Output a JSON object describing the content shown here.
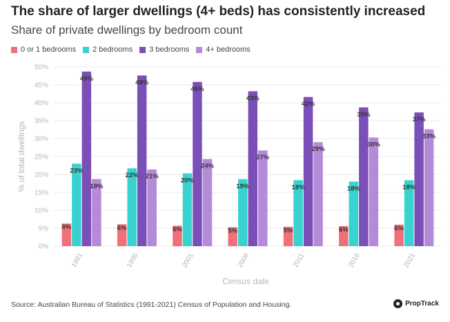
{
  "header": {
    "title": "The share of larger dwellings (4+ beds) has consistently increased",
    "subtitle": "Share of private dwellings by bedroom count"
  },
  "colors": {
    "s0": "#f0707a",
    "s1": "#38d2d0",
    "s2": "#7b4fb8",
    "s3": "#b48ad9",
    "grid": "#e8e8e8",
    "tick": "#b5b5b5",
    "label": "#333333"
  },
  "chart_data": {
    "type": "bar",
    "title": "The share of larger dwellings (4+ beds) has consistently increased",
    "subtitle": "Share of private dwellings by bedroom count",
    "xlabel": "Census date",
    "ylabel": "% of total dwellings",
    "ylim": [
      0,
      50
    ],
    "yticks": [
      "0%",
      "5%",
      "10%",
      "15%",
      "20%",
      "25%",
      "30%",
      "35%",
      "40%",
      "45%",
      "50%"
    ],
    "grid": true,
    "legend_position": "top-left",
    "categories": [
      "1991",
      "1996",
      "2001",
      "2006",
      "2011",
      "2016",
      "2021"
    ],
    "series": [
      {
        "name": "0 or 1 bedrooms",
        "values": [
          6.3,
          6.1,
          5.7,
          5.3,
          5.4,
          5.6,
          6.0
        ],
        "labels": [
          "6%",
          "6%",
          "6%",
          "5%",
          "5%",
          "6%",
          "6%"
        ]
      },
      {
        "name": "2 bedrooms",
        "values": [
          23.0,
          21.7,
          20.3,
          18.7,
          18.4,
          18.0,
          18.4
        ],
        "labels": [
          "23%",
          "22%",
          "20%",
          "19%",
          "18%",
          "18%",
          "18%"
        ]
      },
      {
        "name": "3 bedrooms",
        "values": [
          48.7,
          47.6,
          45.8,
          43.2,
          41.6,
          38.7,
          37.3
        ],
        "labels": [
          "49%",
          "48%",
          "46%",
          "43%",
          "42%",
          "39%",
          "37%"
        ]
      },
      {
        "name": "4+ bedrooms",
        "values": [
          18.7,
          21.4,
          24.3,
          26.7,
          29.0,
          30.3,
          32.6
        ],
        "labels": [
          "19%",
          "21%",
          "24%",
          "27%",
          "29%",
          "30%",
          "33%"
        ]
      }
    ]
  },
  "footer": {
    "source": "Source: Australian Bureau of Statistics (1991-2021) Census of Population and Housing.",
    "brand": "PropTrack"
  }
}
